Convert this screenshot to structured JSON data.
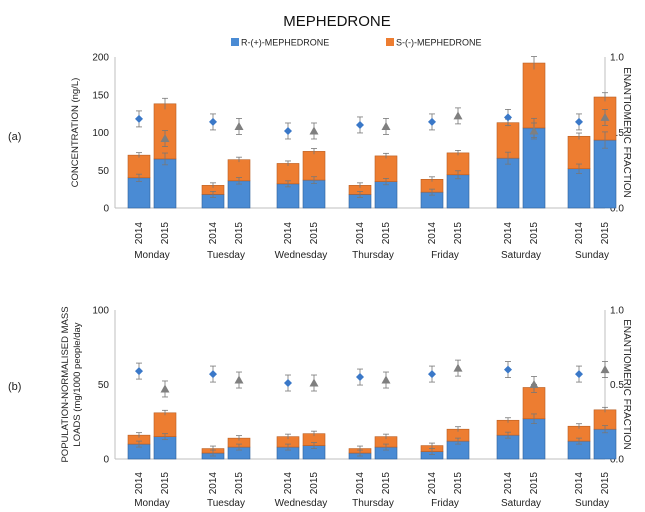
{
  "colors": {
    "r": "#4a8bd4",
    "s": "#ed7d31",
    "ef2014": "#3a78c8",
    "ef2015": "#7f7f7f",
    "axis": "#bfbfbf",
    "err": "#777777"
  },
  "chart_data": {
    "type": "bar",
    "title": "MEPHEDRONE",
    "legend": [
      "R-(+)-MEPHEDRONE",
      "S-(-)-MEPHEDRONE"
    ],
    "days": [
      "Monday",
      "Tuesday",
      "Wednesday",
      "Thursday",
      "Friday",
      "Saturday",
      "Sunday"
    ],
    "years": [
      "2014",
      "2015"
    ],
    "panels": [
      {
        "label": "(a)",
        "ylabel": "CONCENTRATION (ng/L)",
        "ylabel2": "ENANTIOMERIC FRACTION",
        "ylim": [
          0,
          200
        ],
        "yticks": [
          "0",
          "50",
          "100",
          "150",
          "200"
        ],
        "y2ticks": [
          "0.0",
          "0.5",
          "1.0"
        ],
        "r2014": [
          40,
          18,
          32,
          18,
          21,
          66,
          52
        ],
        "s2014": [
          30,
          12,
          27,
          12,
          17,
          47,
          43
        ],
        "r2015": [
          65,
          36,
          37,
          35,
          44,
          106,
          90
        ],
        "s2015": [
          73,
          28,
          38,
          34,
          29,
          86,
          57
        ],
        "ef2014": [
          0.59,
          0.57,
          0.51,
          0.55,
          0.57,
          0.6,
          0.57
        ],
        "ef2015": [
          0.46,
          0.54,
          0.51,
          0.54,
          0.61,
          0.51,
          0.6
        ]
      },
      {
        "label": "(b)",
        "ylabel": "POPULATION-NORMALISED MASS",
        "ylabel_line2": "LOADS (mg/1000 people/day",
        "ylabel2": "ENANTIOMERIC FRACTION",
        "ylim": [
          0,
          100
        ],
        "yticks": [
          "0",
          "50",
          "100"
        ],
        "y2ticks": [
          "0.0",
          "0.5",
          "1.0"
        ],
        "r2014": [
          10,
          4,
          8,
          4,
          5,
          16,
          12
        ],
        "s2014": [
          6,
          3,
          7,
          3,
          4,
          10,
          10
        ],
        "r2015": [
          15,
          8,
          9,
          8,
          12,
          27,
          20
        ],
        "s2015": [
          16,
          6,
          8,
          7,
          8,
          21,
          13
        ],
        "ef2014": [
          0.59,
          0.57,
          0.51,
          0.55,
          0.57,
          0.6,
          0.57
        ],
        "ef2015": [
          0.47,
          0.53,
          0.51,
          0.53,
          0.61,
          0.5,
          0.6
        ]
      }
    ]
  }
}
